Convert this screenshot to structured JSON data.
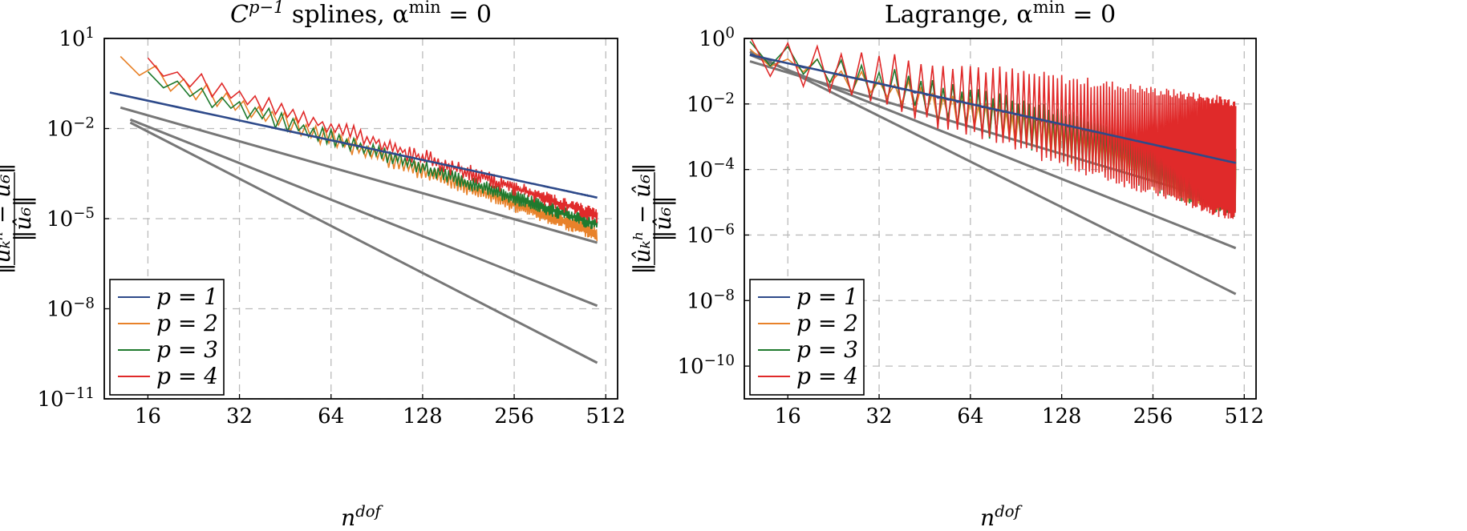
{
  "chart_data": [
    {
      "type": "line",
      "title": "C^{p-1} splines, α^min = 0",
      "title_parts": {
        "base": "C",
        "sup": "p−1",
        "rest": " splines, α",
        "sup2": "min",
        "tail": " = 0"
      },
      "xlabel": "n^dof",
      "xlabel_parts": {
        "base": "n",
        "sup": "dof"
      },
      "ylabel": "‖û_k^h − û_6‖ / ‖û_6‖",
      "x_scale": "log2",
      "y_scale": "log10",
      "xlim": [
        11.5,
        560
      ],
      "ylim_exp": [
        -11,
        1
      ],
      "x_ticks": [
        16,
        32,
        64,
        128,
        256,
        512
      ],
      "x_tick_labels": [
        "16",
        "32",
        "64",
        "128",
        "256",
        "512"
      ],
      "y_ticks_exp": [
        1,
        -2,
        -5,
        -8,
        -11
      ],
      "y_tick_labels": [
        {
          "base": "10",
          "sup": "1"
        },
        {
          "base": "10",
          "sup": "−2"
        },
        {
          "base": "10",
          "sup": "−5"
        },
        {
          "base": "10",
          "sup": "−8"
        },
        {
          "base": "10",
          "sup": "−11"
        }
      ],
      "grid": true,
      "legend_position": "bottom-left",
      "series": [
        {
          "name": "p = 1",
          "color": "#2e4a8a",
          "x_range": [
            12,
            480
          ],
          "start_exp": -0.8,
          "end_exp": -4.3,
          "osc": 0.0,
          "noise": 0.03
        },
        {
          "name": "p = 2",
          "color": "#e8822a",
          "x_range": [
            13,
            480
          ],
          "start_exp": 0.2,
          "end_exp": -5.5,
          "osc": 0.55,
          "noise": 0.2
        },
        {
          "name": "p = 3",
          "color": "#1f7a2e",
          "x_range": [
            16,
            480
          ],
          "start_exp": -0.3,
          "end_exp": -5.2,
          "osc": 0.45,
          "noise": 0.2
        },
        {
          "name": "p = 4",
          "color": "#e02a2a",
          "x_range": [
            16,
            480
          ],
          "start_exp": 0.1,
          "end_exp": -4.9,
          "osc": 0.45,
          "noise": 0.25
        }
      ],
      "reference_lines": [
        {
          "color": "#777777",
          "points": [
            [
              13,
              -1.3
            ],
            [
              480,
              -5.8
            ]
          ]
        },
        {
          "color": "#777777",
          "points": [
            [
              14,
              -1.7
            ],
            [
              480,
              -7.9
            ]
          ]
        },
        {
          "color": "#777777",
          "points": [
            [
              14,
              -1.8
            ],
            [
              480,
              -9.8
            ]
          ]
        }
      ],
      "legend": [
        "p = 1",
        "p = 2",
        "p = 3",
        "p = 4"
      ]
    },
    {
      "type": "line",
      "title": "Lagrange, α^min = 0",
      "title_parts": {
        "base": "Lagrange, α",
        "sup": "min",
        "tail": " = 0"
      },
      "xlabel": "n^dof",
      "xlabel_parts": {
        "base": "n",
        "sup": "dof"
      },
      "ylabel": "‖û_k^h − û_6‖ / ‖û_6‖",
      "x_scale": "log2",
      "y_scale": "log10",
      "xlim": [
        11.5,
        560
      ],
      "ylim_exp": [
        -11,
        0
      ],
      "x_ticks": [
        16,
        32,
        64,
        128,
        256,
        512
      ],
      "x_tick_labels": [
        "16",
        "32",
        "64",
        "128",
        "256",
        "512"
      ],
      "y_ticks_exp": [
        0,
        -2,
        -4,
        -6,
        -8,
        -10
      ],
      "y_tick_labels": [
        {
          "base": "10",
          "sup": "0"
        },
        {
          "base": "10",
          "sup": "−2"
        },
        {
          "base": "10",
          "sup": "−4"
        },
        {
          "base": "10",
          "sup": "−6"
        },
        {
          "base": "10",
          "sup": "−8"
        },
        {
          "base": "10",
          "sup": "−10"
        }
      ],
      "grid": true,
      "legend_position": "bottom-left",
      "series": [
        {
          "name": "p = 1",
          "color": "#2e4a8a",
          "x_range": [
            12,
            480
          ],
          "start_exp": -0.5,
          "end_exp": -3.8,
          "osc": 0.05,
          "noise": 0.05
        },
        {
          "name": "p = 2",
          "color": "#e8822a",
          "x_range": [
            12,
            480
          ],
          "start_exp": -0.4,
          "end_exp": -4.6,
          "osc": 0.9,
          "noise": 0.3
        },
        {
          "name": "p = 3",
          "color": "#1f7a2e",
          "x_range": [
            12,
            480
          ],
          "start_exp": -0.3,
          "end_exp": -4.4,
          "osc": 1.2,
          "noise": 0.3
        },
        {
          "name": "p = 4",
          "color": "#e02a2a",
          "x_range": [
            12,
            480
          ],
          "start_exp": -0.4,
          "end_exp": -3.7,
          "osc": 2.2,
          "noise": 0.3
        }
      ],
      "reference_lines": [
        {
          "color": "#777777",
          "points": [
            [
              12,
              -0.7
            ],
            [
              480,
              -5.1
            ]
          ]
        },
        {
          "color": "#777777",
          "points": [
            [
              12,
              -0.5
            ],
            [
              480,
              -6.4
            ]
          ]
        },
        {
          "color": "#777777",
          "points": [
            [
              12,
              -0.4
            ],
            [
              480,
              -7.8
            ]
          ]
        }
      ],
      "legend": [
        "p = 1",
        "p = 2",
        "p = 3",
        "p = 4"
      ]
    }
  ]
}
